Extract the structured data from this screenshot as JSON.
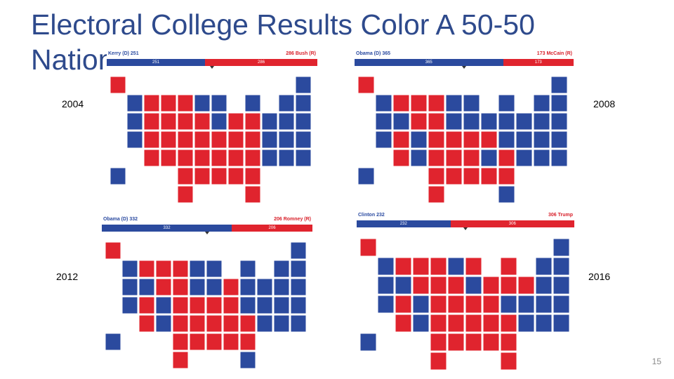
{
  "slide": {
    "title": "Electoral College Results Color A 50-50 Nation",
    "page_number": "15"
  },
  "colors": {
    "dem": "#2b4a9e",
    "rep": "#e0242e",
    "tossup": "#c9c9c9"
  },
  "panels": [
    {
      "year": "2004",
      "dem_label": "Kerry (D)",
      "dem_votes": "251",
      "rep_label": "Bush (R)",
      "rep_votes": "286",
      "dem_share": 0.467,
      "blue_states": [
        "WA",
        "OR",
        "CA",
        "MN",
        "WI",
        "MI",
        "IL",
        "PA",
        "NY",
        "ME",
        "NH",
        "VT",
        "MA",
        "RI",
        "CT",
        "NJ",
        "DE",
        "MD",
        "DC",
        "HI"
      ]
    },
    {
      "year": "2008",
      "dem_label": "Obama (D)",
      "dem_votes": "365",
      "rep_label": "McCain (R)",
      "rep_votes": "173",
      "dem_share": 0.678,
      "blue_states": [
        "WA",
        "OR",
        "CA",
        "NV",
        "CO",
        "NM",
        "MN",
        "IA",
        "WI",
        "MI",
        "IL",
        "IN",
        "OH",
        "PA",
        "NY",
        "VA",
        "NC",
        "FL",
        "ME",
        "NH",
        "VT",
        "MA",
        "RI",
        "CT",
        "NJ",
        "DE",
        "MD",
        "DC",
        "HI"
      ]
    },
    {
      "year": "2012",
      "dem_label": "Obama (D)",
      "dem_votes": "332",
      "rep_label": "Romney (R)",
      "rep_votes": "206",
      "dem_share": 0.617,
      "blue_states": [
        "WA",
        "OR",
        "CA",
        "NV",
        "CO",
        "NM",
        "MN",
        "IA",
        "WI",
        "MI",
        "IL",
        "OH",
        "PA",
        "NY",
        "VA",
        "FL",
        "ME",
        "NH",
        "VT",
        "MA",
        "RI",
        "CT",
        "NJ",
        "DE",
        "MD",
        "DC",
        "HI"
      ]
    },
    {
      "year": "2016",
      "dem_label": "Clinton",
      "dem_votes": "232",
      "rep_label": "Trump",
      "rep_votes": "306",
      "dem_share": 0.431,
      "blue_states": [
        "WA",
        "OR",
        "CA",
        "NV",
        "CO",
        "NM",
        "MN",
        "IL",
        "VA",
        "NY",
        "ME",
        "NH",
        "VT",
        "MA",
        "RI",
        "CT",
        "NJ",
        "DE",
        "MD",
        "DC",
        "HI"
      ]
    }
  ]
}
